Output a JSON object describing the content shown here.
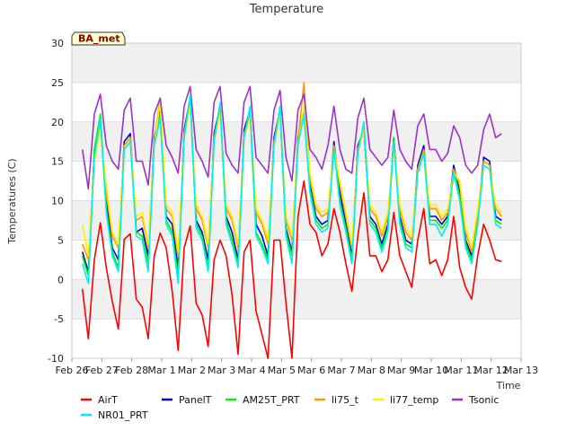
{
  "chart_data": {
    "type": "line",
    "title": "Temperature",
    "xlabel": "Time",
    "ylabel": "Temperatures (C)",
    "badge": "BA_met",
    "ylim": [
      -10,
      30
    ],
    "yticks": [
      -10,
      -5,
      0,
      5,
      10,
      15,
      20,
      25,
      30
    ],
    "xlim": [
      0,
      15
    ],
    "xticks": [
      {
        "v": 0,
        "label": "Feb 26"
      },
      {
        "v": 1,
        "label": "Feb 27"
      },
      {
        "v": 2,
        "label": "Feb 28"
      },
      {
        "v": 3,
        "label": "Mar 1"
      },
      {
        "v": 4,
        "label": "Mar 2"
      },
      {
        "v": 5,
        "label": "Mar 3"
      },
      {
        "v": 6,
        "label": "Mar 4"
      },
      {
        "v": 7,
        "label": "Mar 5"
      },
      {
        "v": 8,
        "label": "Mar 6"
      },
      {
        "v": 9,
        "label": "Mar 7"
      },
      {
        "v": 10,
        "label": "Mar 8"
      },
      {
        "v": 11,
        "label": "Mar 9"
      },
      {
        "v": 12,
        "label": "Mar 10"
      },
      {
        "v": 13,
        "label": "Mar 11"
      },
      {
        "v": 14,
        "label": "Mar 12"
      },
      {
        "v": 15,
        "label": "Mar 13"
      }
    ],
    "x": [
      0.35,
      0.55,
      0.75,
      0.95,
      1.15,
      1.35,
      1.55,
      1.75,
      1.95,
      2.15,
      2.35,
      2.55,
      2.75,
      2.95,
      3.15,
      3.35,
      3.55,
      3.75,
      3.95,
      4.15,
      4.35,
      4.55,
      4.75,
      4.95,
      5.15,
      5.35,
      5.55,
      5.75,
      5.95,
      6.15,
      6.35,
      6.55,
      6.75,
      6.95,
      7.15,
      7.35,
      7.55,
      7.75,
      7.95,
      8.15,
      8.35,
      8.55,
      8.75,
      8.95,
      9.15,
      9.35,
      9.55,
      9.75,
      9.95,
      10.15,
      10.35,
      10.55,
      10.75,
      10.95,
      11.15,
      11.35,
      11.55,
      11.75,
      11.95,
      12.15,
      12.35,
      12.55,
      12.75,
      12.95,
      13.15,
      13.35,
      13.55,
      13.75,
      13.95,
      14.15,
      14.35
    ],
    "series": [
      {
        "name": "AirT",
        "color": "#ff0000",
        "values": [
          -1.2,
          -7.5,
          2.5,
          7.2,
          1.5,
          -2.8,
          -6.3,
          5.1,
          5.8,
          -2.5,
          -3.5,
          -7.5,
          3.0,
          5.9,
          4.0,
          -1.5,
          -9.0,
          4.0,
          6.8,
          -3.0,
          -4.5,
          -8.5,
          2.5,
          5.0,
          3.0,
          -2.0,
          -9.5,
          3.5,
          5.0,
          -4.0,
          -7.0,
          -10.0,
          5.0,
          5.0,
          -3.0,
          -10.0,
          8.0,
          12.5,
          7.0,
          6.0,
          3.0,
          4.5,
          9.0,
          6.0,
          2.0,
          -1.5,
          5.5,
          11.0,
          3.0,
          3.0,
          1.0,
          2.5,
          8.5,
          3.0,
          1.0,
          -1.0,
          5.0,
          9.0,
          2.0,
          2.5,
          0.5,
          2.5,
          8.0,
          1.5,
          -1.0,
          -2.5,
          3.0,
          7.0,
          5.0,
          2.5,
          2.3
        ]
      },
      {
        "name": "PanelT",
        "color": "#0000cc",
        "values": [
          3.5,
          1.0,
          16.0,
          20.0,
          10.0,
          4.0,
          2.5,
          17.5,
          18.5,
          6.0,
          6.5,
          3.0,
          18.0,
          21.5,
          8.0,
          7.0,
          1.5,
          19.0,
          23.0,
          7.5,
          6.0,
          2.5,
          18.5,
          22.0,
          8.0,
          6.0,
          2.5,
          19.0,
          21.5,
          7.0,
          5.5,
          3.0,
          18.0,
          21.5,
          6.5,
          3.5,
          18.0,
          21.5,
          12.0,
          8.0,
          7.0,
          7.5,
          17.5,
          11.0,
          7.0,
          3.0,
          17.0,
          19.0,
          8.0,
          7.0,
          4.5,
          7.0,
          18.0,
          8.0,
          5.0,
          4.5,
          14.5,
          17.0,
          8.0,
          8.0,
          7.0,
          8.0,
          14.5,
          11.0,
          5.0,
          3.0,
          8.0,
          15.5,
          15.0,
          8.0,
          7.5
        ]
      },
      {
        "name": "AM25T_PRT",
        "color": "#00ee00",
        "values": [
          3.0,
          0.5,
          16.5,
          21.0,
          9.0,
          3.5,
          1.5,
          17.0,
          18.0,
          6.0,
          5.5,
          2.0,
          17.5,
          21.0,
          7.5,
          6.0,
          0.5,
          18.5,
          23.0,
          7.0,
          5.5,
          1.5,
          18.0,
          22.0,
          7.5,
          5.0,
          2.0,
          18.5,
          21.0,
          6.0,
          4.5,
          2.5,
          17.5,
          21.0,
          6.0,
          3.0,
          17.5,
          21.0,
          11.5,
          7.5,
          6.5,
          7.0,
          17.0,
          10.0,
          6.5,
          2.5,
          16.5,
          19.5,
          7.5,
          6.5,
          4.0,
          6.5,
          18.0,
          7.5,
          4.5,
          4.0,
          14.0,
          16.5,
          7.5,
          7.5,
          6.5,
          7.5,
          14.0,
          10.5,
          4.5,
          2.5,
          7.5,
          15.0,
          14.5,
          7.5,
          7.0
        ]
      },
      {
        "name": "li75_t",
        "color": "#ff9900",
        "values": [
          4.5,
          2.5,
          15.5,
          19.5,
          11.0,
          5.5,
          4.0,
          17.0,
          18.0,
          7.5,
          8.0,
          4.0,
          17.5,
          23.0,
          9.0,
          8.0,
          3.0,
          18.5,
          22.5,
          9.0,
          7.5,
          4.0,
          18.0,
          21.5,
          9.0,
          7.5,
          4.0,
          18.5,
          21.0,
          8.5,
          7.0,
          4.5,
          17.5,
          21.5,
          7.5,
          5.0,
          17.5,
          25.0,
          13.0,
          9.0,
          8.0,
          8.5,
          17.0,
          12.0,
          8.0,
          4.0,
          16.5,
          19.5,
          9.0,
          8.0,
          5.5,
          8.0,
          17.5,
          9.0,
          6.0,
          5.0,
          14.0,
          16.5,
          9.0,
          9.0,
          7.5,
          8.5,
          14.0,
          12.0,
          6.0,
          3.5,
          8.5,
          15.0,
          14.5,
          9.0,
          8.0
        ]
      },
      {
        "name": "li77_temp",
        "color": "#ffee00",
        "values": [
          7.0,
          3.0,
          15.0,
          19.0,
          12.0,
          6.0,
          4.5,
          16.5,
          17.5,
          8.0,
          8.5,
          4.5,
          17.0,
          22.5,
          9.5,
          8.5,
          3.5,
          18.0,
          22.0,
          9.5,
          8.0,
          4.5,
          17.5,
          21.0,
          9.5,
          8.0,
          4.5,
          18.0,
          20.5,
          9.0,
          7.5,
          5.0,
          17.0,
          21.0,
          8.0,
          5.5,
          17.0,
          22.0,
          13.5,
          9.5,
          8.5,
          9.0,
          16.5,
          12.5,
          8.5,
          4.5,
          16.0,
          19.0,
          9.5,
          8.5,
          6.0,
          8.5,
          17.0,
          9.5,
          6.5,
          5.5,
          13.5,
          16.0,
          9.5,
          9.5,
          8.0,
          9.0,
          13.5,
          12.5,
          6.5,
          4.0,
          9.0,
          14.5,
          14.0,
          9.5,
          8.5
        ]
      },
      {
        "name": "Tsonic",
        "color": "#9933cc",
        "values": [
          16.5,
          11.5,
          21.0,
          23.5,
          17.0,
          15.0,
          14.0,
          21.5,
          23.0,
          15.0,
          15.0,
          12.0,
          21.0,
          23.0,
          17.0,
          15.5,
          13.5,
          22.0,
          24.5,
          16.5,
          15.0,
          13.0,
          22.5,
          24.5,
          16.0,
          14.5,
          13.5,
          22.5,
          24.5,
          15.5,
          14.5,
          13.5,
          21.5,
          24.0,
          15.5,
          12.5,
          21.5,
          23.5,
          16.5,
          15.5,
          14.0,
          17.0,
          22.0,
          16.5,
          14.0,
          13.5,
          20.5,
          23.0,
          16.5,
          15.5,
          14.5,
          15.5,
          21.5,
          16.5,
          15.0,
          14.0,
          19.5,
          21.0,
          16.5,
          16.5,
          15.0,
          16.0,
          19.5,
          18.0,
          14.5,
          13.5,
          14.5,
          19.0,
          21.0,
          18.0,
          18.5
        ]
      },
      {
        "name": "NR01_PRT",
        "color": "#00eeee",
        "values": [
          2.0,
          -0.5,
          15.5,
          20.5,
          8.5,
          3.0,
          1.0,
          16.5,
          17.5,
          5.5,
          5.0,
          1.0,
          17.0,
          20.5,
          7.0,
          5.5,
          -0.5,
          18.0,
          23.5,
          6.5,
          5.0,
          1.0,
          17.5,
          22.5,
          7.0,
          4.5,
          1.5,
          18.0,
          22.0,
          5.5,
          4.0,
          2.0,
          17.0,
          22.0,
          5.5,
          2.0,
          17.0,
          21.0,
          11.0,
          7.0,
          6.0,
          6.5,
          16.5,
          9.5,
          6.0,
          2.0,
          16.0,
          20.0,
          7.0,
          6.0,
          3.5,
          6.0,
          17.5,
          7.0,
          4.0,
          3.5,
          13.5,
          16.0,
          7.0,
          7.0,
          5.5,
          7.0,
          13.5,
          10.0,
          4.0,
          2.0,
          7.0,
          14.5,
          14.0,
          7.0,
          6.5
        ]
      }
    ],
    "legend": [
      {
        "name": "AirT",
        "color": "#ff0000"
      },
      {
        "name": "PanelT",
        "color": "#0000cc"
      },
      {
        "name": "AM25T_PRT",
        "color": "#00ee00"
      },
      {
        "name": "li75_t",
        "color": "#ff9900"
      },
      {
        "name": "li77_temp",
        "color": "#ffee00"
      },
      {
        "name": "Tsonic",
        "color": "#9933cc"
      },
      {
        "name": "NR01_PRT",
        "color": "#00eeee"
      }
    ],
    "legend_position": "bottom",
    "grid": true,
    "band_colors": [
      "#f0f0f0",
      "#ffffff"
    ]
  }
}
